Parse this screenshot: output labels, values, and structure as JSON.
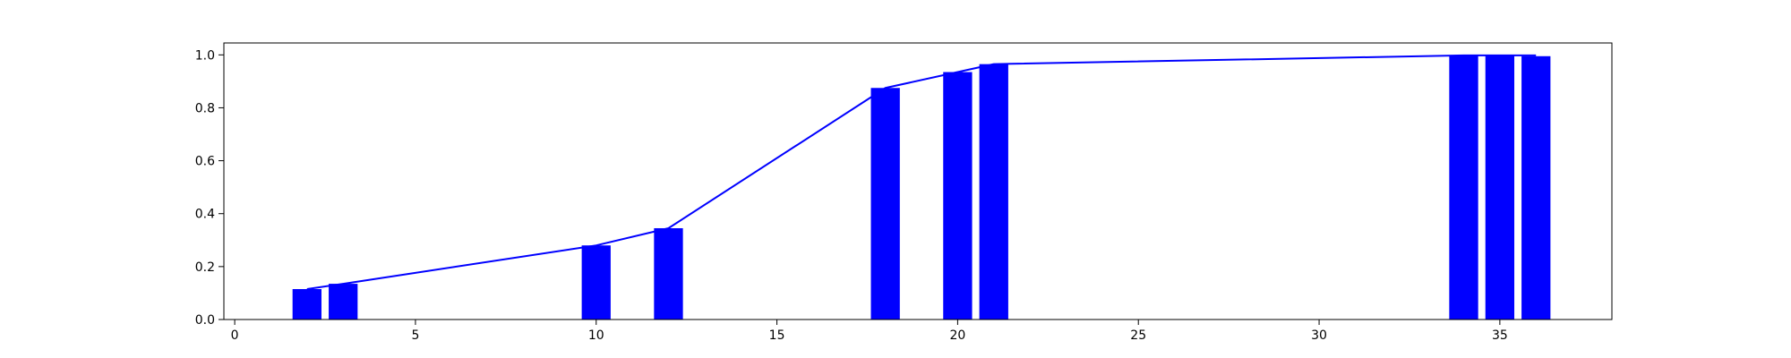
{
  "chart_data": {
    "type": "bar",
    "title": "",
    "xlabel": "",
    "ylabel": "",
    "xlim": [
      -0.3,
      38.1
    ],
    "ylim": [
      0,
      1.045
    ],
    "grid": false,
    "bar_width": 0.8,
    "color": "#0000ff",
    "x_ticks": [
      0,
      5,
      10,
      15,
      20,
      25,
      30,
      35
    ],
    "y_ticks": [
      0.0,
      0.2,
      0.4,
      0.6,
      0.8,
      1.0
    ],
    "x_tick_labels": [
      "0",
      "5",
      "10",
      "15",
      "20",
      "25",
      "30",
      "35"
    ],
    "y_tick_labels": [
      "0.0",
      "0.2",
      "0.4",
      "0.6",
      "0.8",
      "1.0"
    ],
    "bars": {
      "x": [
        2,
        3,
        10,
        12,
        18,
        20,
        21,
        34,
        35,
        36
      ],
      "values": [
        0.115,
        0.135,
        0.28,
        0.345,
        0.875,
        0.935,
        0.965,
        0.998,
        0.998,
        0.995
      ]
    },
    "line": {
      "x": [
        2,
        3,
        10,
        12,
        18,
        20,
        21,
        34,
        35,
        36
      ],
      "values": [
        0.115,
        0.135,
        0.28,
        0.345,
        0.875,
        0.935,
        0.965,
        0.998,
        0.998,
        0.998
      ]
    }
  }
}
